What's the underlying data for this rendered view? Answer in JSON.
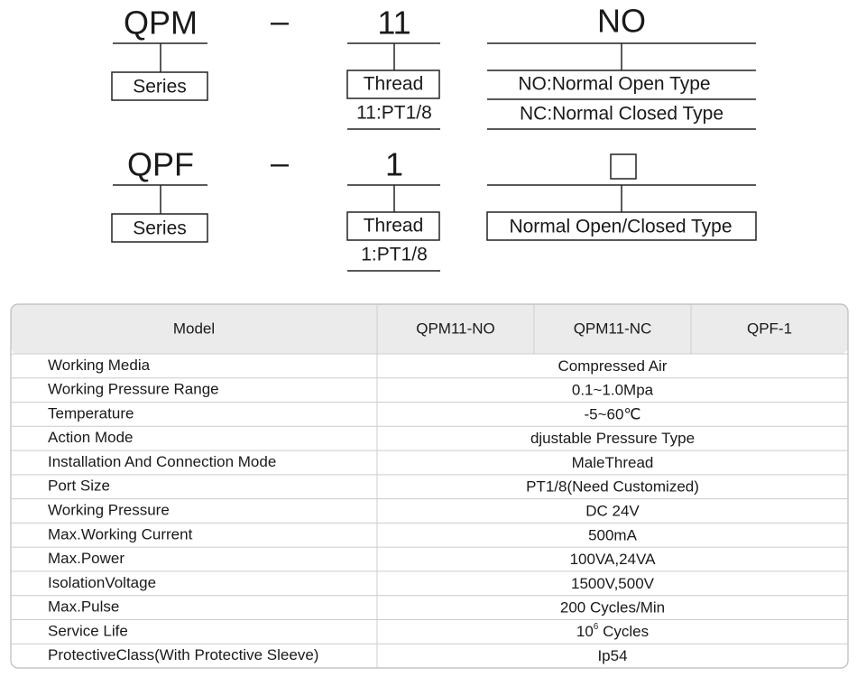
{
  "ordering": [
    {
      "series_code": "QPM",
      "separator": "–",
      "series_label": "Series",
      "thread_code": "11",
      "thread_label": "Thread",
      "thread_option": "11:PT1/8",
      "type_code": "NO",
      "type_options": [
        "NO:Normal Open Type",
        "NC:Normal Closed Type"
      ]
    },
    {
      "series_code": "QPF",
      "separator": "–",
      "series_label": "Series",
      "thread_code": "1",
      "thread_label": "Thread",
      "thread_option": "1:PT1/8",
      "type_label": "Normal Open/Closed Type"
    }
  ],
  "table": {
    "header": [
      "Model",
      "QPM11-NO",
      "QPM11-NC",
      "QPF-1"
    ],
    "rows": [
      [
        "Working Media",
        "Compressed Air"
      ],
      [
        "Working Pressure Range",
        "0.1~1.0Mpa"
      ],
      [
        "Temperature",
        "-5~60℃"
      ],
      [
        "Action Mode",
        "djustable Pressure Type"
      ],
      [
        "Installation And Connection Mode",
        "MaleThread"
      ],
      [
        "Port Size",
        "PT1/8(Need Customized)"
      ],
      [
        "Working Pressure",
        "DC 24V"
      ],
      [
        "Max.Working Current",
        "500mA"
      ],
      [
        "Max.Power",
        "100VA,24VA"
      ],
      [
        "IsolationVoltage",
        "1500V,500V"
      ],
      [
        "Max.Pulse",
        "200 Cycles/Min"
      ],
      [
        "Service Life",
        {
          "base": "10",
          "exponent": "6",
          "unit": "Cycles"
        }
      ],
      [
        "ProtectiveClass(With Protective Sleeve)",
        "Ip54"
      ]
    ]
  }
}
